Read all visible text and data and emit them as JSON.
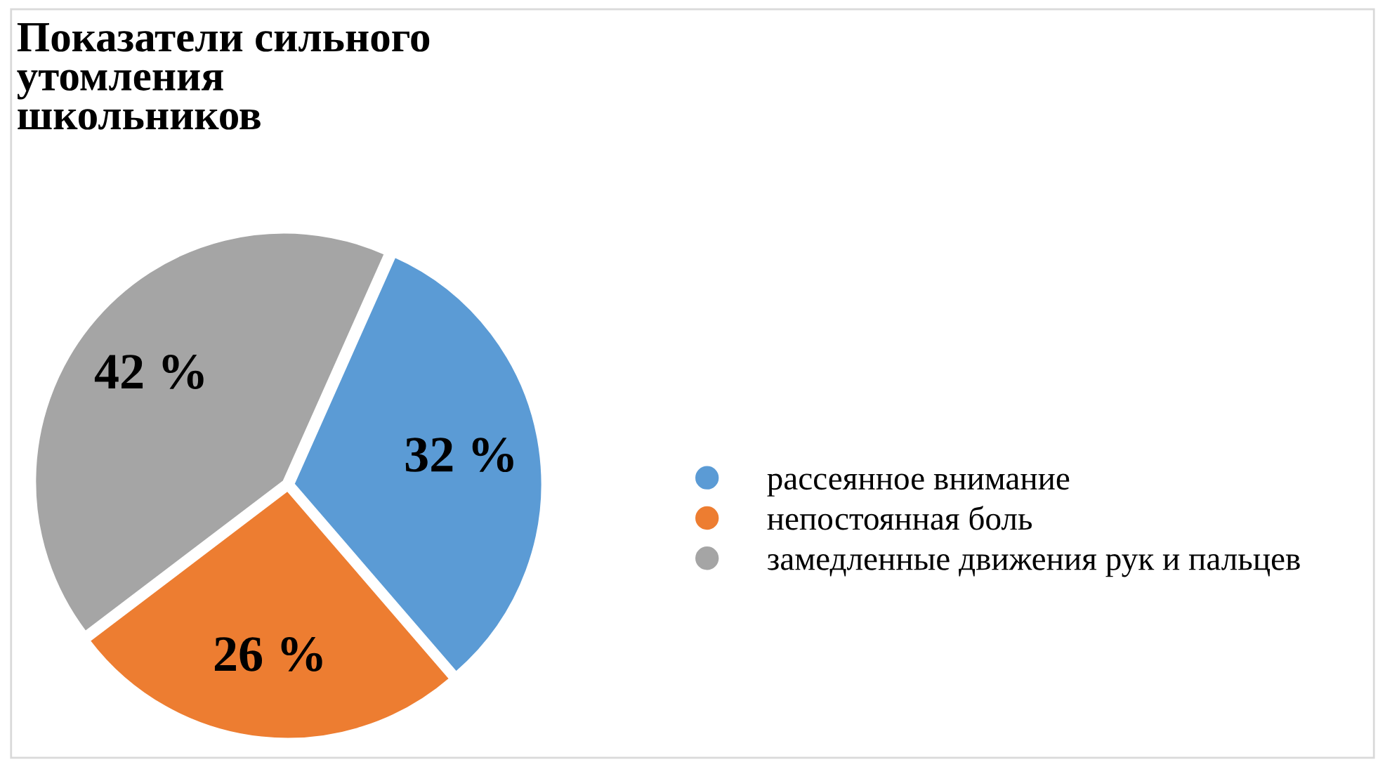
{
  "chart_data": {
    "type": "pie",
    "title": "Показатели сильного\nутомления\nшкольников",
    "categories": [
      "рассеянное внимание",
      "непостоянная боль",
      "замедленные движения рук и пальцев"
    ],
    "values": [
      32,
      26,
      42
    ],
    "colors": [
      "#5b9bd5",
      "#ed7d31",
      "#a5a5a5"
    ],
    "value_labels": [
      "32 %",
      "26 %",
      "42 %"
    ],
    "legend": "right"
  }
}
